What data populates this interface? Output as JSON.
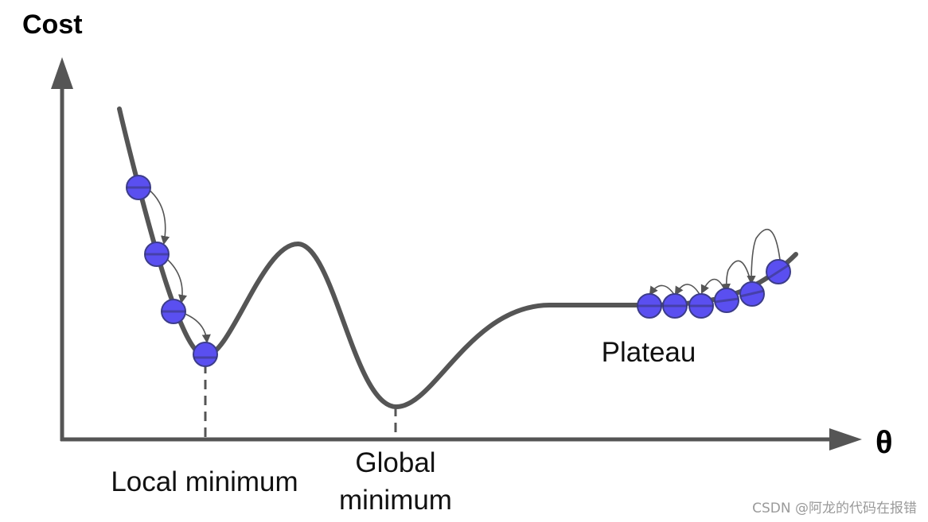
{
  "diagram": {
    "y_axis_label": "Cost",
    "x_axis_label": "θ",
    "annotations": {
      "local_minimum": "Local minimum",
      "global_minimum_line1": "Global",
      "global_minimum_line2": "minimum",
      "plateau": "Plateau"
    },
    "colors": {
      "axis": "#555555",
      "curve": "#555555",
      "ball_fill": "#5a4ff0",
      "ball_stroke": "#3d3d8a",
      "step_arrow": "#555555"
    },
    "gradient_descent_left_steps": 4,
    "gradient_descent_plateau_steps": 6
  },
  "watermark": {
    "text": "CSDN @阿龙的代码在报错"
  }
}
